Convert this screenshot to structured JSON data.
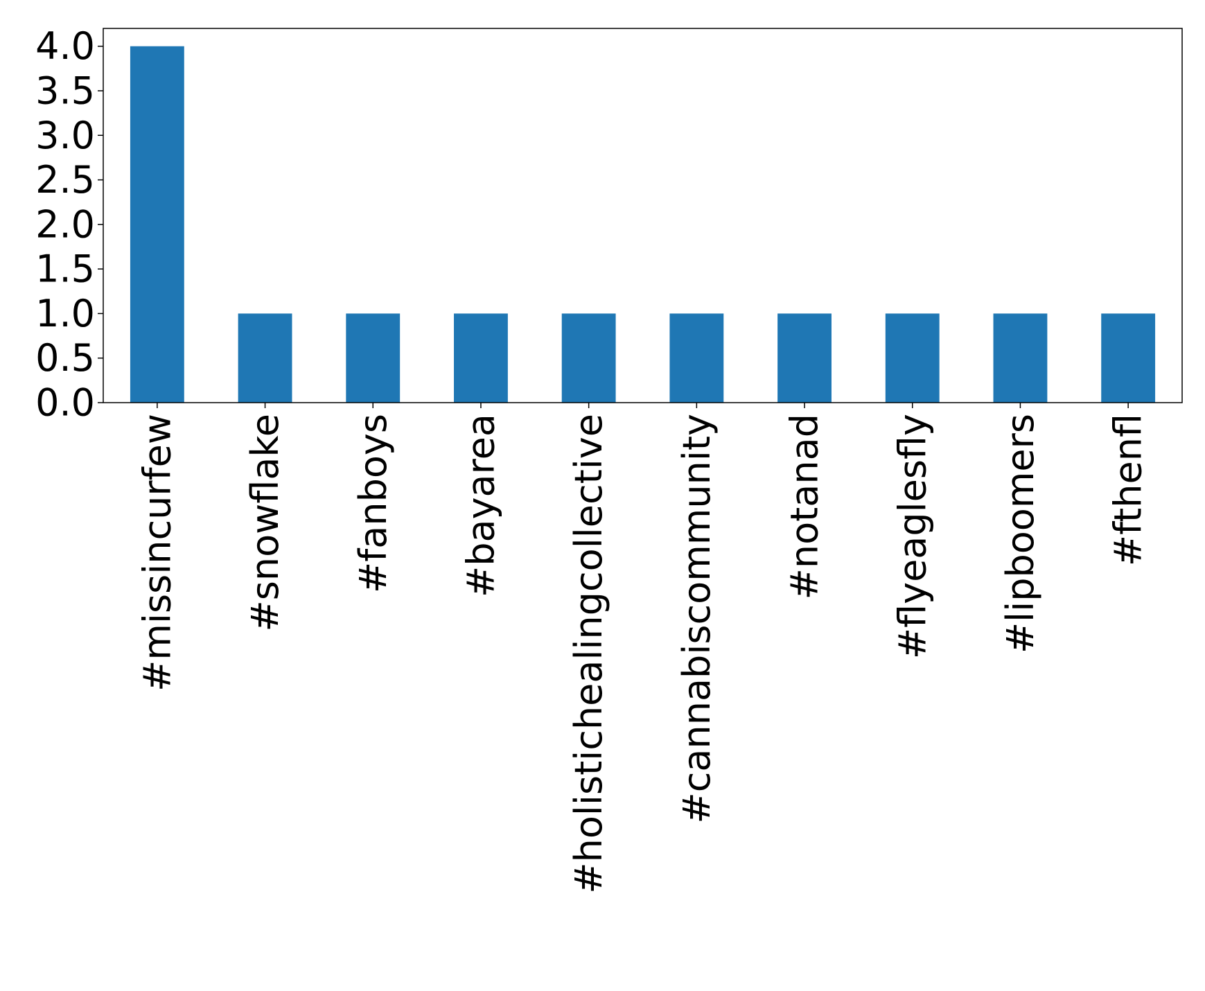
{
  "chart_data": {
    "type": "bar",
    "categories": [
      "#missincurfew",
      "#snowflake",
      "#fanboys",
      "#bayarea",
      "#holistichealingcollective",
      "#cannabiscommunity",
      "#notanad",
      "#flyeaglesfly",
      "#lipboomers",
      "#fthenfl"
    ],
    "values": [
      4,
      1,
      1,
      1,
      1,
      1,
      1,
      1,
      1,
      1
    ],
    "color": "#1f77b4",
    "ylim": [
      0,
      4.2
    ],
    "yticks": [
      {
        "value": 0,
        "label": "0.0"
      },
      {
        "value": 0.5,
        "label": "0.5"
      },
      {
        "value": 1,
        "label": "1.0"
      },
      {
        "value": 1.5,
        "label": "1.5"
      },
      {
        "value": 2,
        "label": "2.0"
      },
      {
        "value": 2.5,
        "label": "2.5"
      },
      {
        "value": 3,
        "label": "3.0"
      },
      {
        "value": 3.5,
        "label": "3.5"
      },
      {
        "value": 4,
        "label": "4.0"
      }
    ],
    "grid": false
  }
}
